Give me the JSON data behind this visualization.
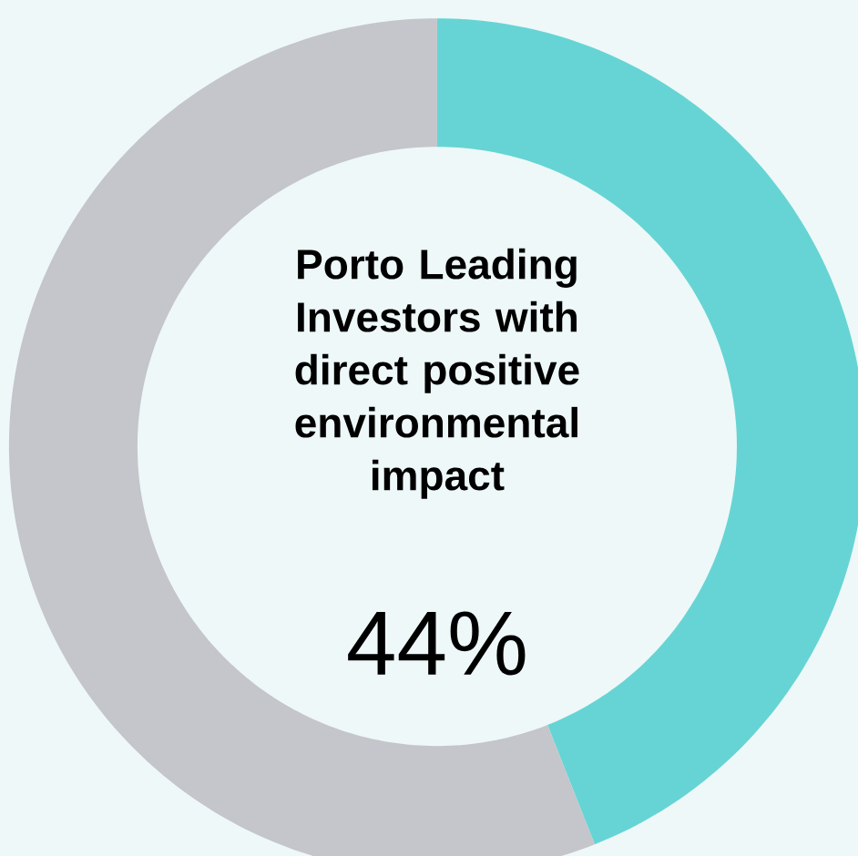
{
  "chart_data": {
    "type": "donut",
    "title": "Porto Leading Investors with direct positive environmental impact",
    "categories": [
      null,
      null
    ],
    "values": [
      44,
      56
    ],
    "colors": [
      "#66d4d4",
      "#c5c5cc"
    ],
    "annotations": [
      "44%"
    ]
  }
}
